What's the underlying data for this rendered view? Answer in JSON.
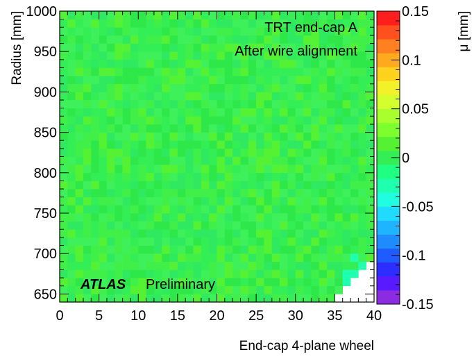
{
  "chart_data": {
    "type": "heatmap",
    "title_lines": [
      "TRT end-cap A",
      "After wire alignment"
    ],
    "xlabel": "End-cap 4-plane wheel",
    "ylabel": "Radius [mm]",
    "zlabel": "μ [mm]",
    "watermark": {
      "bold": "ATLAS",
      "normal": "Preliminary"
    },
    "xlim": [
      0,
      40
    ],
    "ylim": [
      640,
      1000
    ],
    "zlim": [
      -0.15,
      0.15
    ],
    "x_ticks": [
      "0",
      "5",
      "10",
      "15",
      "20",
      "25",
      "30",
      "35",
      "40"
    ],
    "y_ticks": [
      "650",
      "700",
      "750",
      "800",
      "850",
      "900",
      "950",
      "1000"
    ],
    "z_ticks": [
      "-0.15",
      "-0.1",
      "-0.05",
      "0",
      "0.05",
      "0.1",
      "0.15"
    ],
    "n_bins_x": 40,
    "n_bins_y": 36,
    "typical_value": 0.0,
    "typical_spread": 0.01,
    "empty_region": {
      "description_values": [
        {
          "x_from": 35,
          "r_below": 650
        },
        {
          "x_from": 36,
          "r_below": 660
        },
        {
          "x_from": 37,
          "r_below": 670
        },
        {
          "x_from": 38,
          "r_below": 680
        },
        {
          "x_from": 39,
          "r_below": 690
        }
      ]
    },
    "palette": [
      "#8b2be2",
      "#5a1aff",
      "#2d2dff",
      "#1f5cff",
      "#1e8cff",
      "#1fb4ff",
      "#1fdcff",
      "#1fffe0",
      "#1fffb0",
      "#1fff80",
      "#33ee55",
      "#55f233",
      "#7dff2d",
      "#a8ff2d",
      "#d4ff2d",
      "#f2f22b",
      "#ffd21e",
      "#ffaa1e",
      "#ff801e",
      "#ff501e",
      "#ff1e1e"
    ]
  }
}
